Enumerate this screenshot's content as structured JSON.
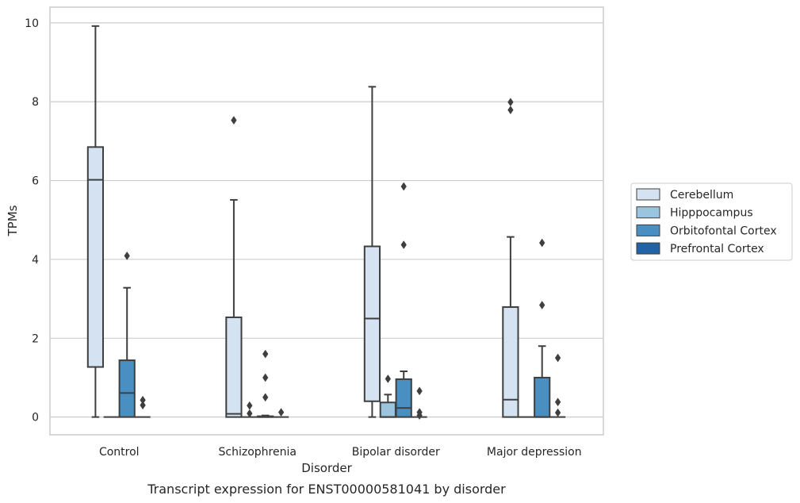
{
  "chart_data": {
    "type": "box",
    "title": "",
    "caption": "Transcript expression for ENST00000581041 by disorder",
    "xlabel": "Disorder",
    "ylabel": "TPMs",
    "ylim": [
      -0.45,
      10.4
    ],
    "yticks": [
      0,
      2,
      4,
      6,
      8,
      10
    ],
    "grid": "horizontal",
    "legend_position": "right",
    "categories": [
      "Control",
      "Schizophrenia",
      "Bipolar disorder",
      "Major depression"
    ],
    "series": [
      {
        "name": "Cerebellum",
        "color": "#d4e2f1",
        "boxes": [
          {
            "whislo": 0,
            "q1": 1.27,
            "med": 6.02,
            "q3": 6.85,
            "whishi": 9.92,
            "fliers": []
          },
          {
            "whislo": 0,
            "q1": 0,
            "med": 0.08,
            "q3": 2.53,
            "whishi": 5.51,
            "fliers": [
              7.53
            ]
          },
          {
            "whislo": 0,
            "q1": 0.4,
            "med": 2.5,
            "q3": 4.33,
            "whishi": 8.38,
            "fliers": []
          },
          {
            "whislo": 0,
            "q1": 0,
            "med": 0.44,
            "q3": 2.79,
            "whishi": 4.57,
            "fliers": [
              7.79,
              7.99
            ]
          }
        ]
      },
      {
        "name": "Hipppocampus",
        "color": "#9bc4de",
        "boxes": [
          {
            "whislo": 0,
            "q1": 0,
            "med": 0,
            "q3": 0,
            "whishi": 0,
            "fliers": []
          },
          {
            "whislo": 0,
            "q1": 0,
            "med": 0,
            "q3": 0,
            "whishi": 0,
            "fliers": [
              0.09,
              0.29
            ]
          },
          {
            "whislo": 0,
            "q1": 0,
            "med": 0,
            "q3": 0.37,
            "whishi": 0.57,
            "fliers": [
              0.97
            ]
          },
          {
            "whislo": 0,
            "q1": 0,
            "med": 0,
            "q3": 0,
            "whishi": 0,
            "fliers": []
          }
        ]
      },
      {
        "name": "Orbitofontal Cortex",
        "color": "#4a8fc1",
        "boxes": [
          {
            "whislo": 0,
            "q1": 0,
            "med": 0.61,
            "q3": 1.44,
            "whishi": 3.28,
            "fliers": [
              4.09
            ]
          },
          {
            "whislo": 0,
            "q1": 0,
            "med": 0,
            "q3": 0.02,
            "whishi": 0.04,
            "fliers": [
              0.5,
              1.0,
              1.6
            ]
          },
          {
            "whislo": 0,
            "q1": 0,
            "med": 0.23,
            "q3": 0.96,
            "whishi": 1.16,
            "fliers": [
              4.37,
              5.85
            ]
          },
          {
            "whislo": 0,
            "q1": 0,
            "med": 0,
            "q3": 1.0,
            "whishi": 1.8,
            "fliers": [
              2.84,
              4.42
            ]
          }
        ]
      },
      {
        "name": "Prefrontal Cortex",
        "color": "#2262a6",
        "boxes": [
          {
            "whislo": 0,
            "q1": 0,
            "med": 0,
            "q3": 0,
            "whishi": 0,
            "fliers": [
              0.3,
              0.43
            ]
          },
          {
            "whislo": 0,
            "q1": 0,
            "med": 0,
            "q3": 0,
            "whishi": 0,
            "fliers": [
              0.12
            ]
          },
          {
            "whislo": 0,
            "q1": 0,
            "med": 0,
            "q3": 0,
            "whishi": 0,
            "fliers": [
              0.04,
              0.12,
              0.66
            ]
          },
          {
            "whislo": 0,
            "q1": 0,
            "med": 0,
            "q3": 0,
            "whishi": 0,
            "fliers": [
              0.11,
              0.38,
              1.5
            ]
          }
        ]
      }
    ]
  }
}
